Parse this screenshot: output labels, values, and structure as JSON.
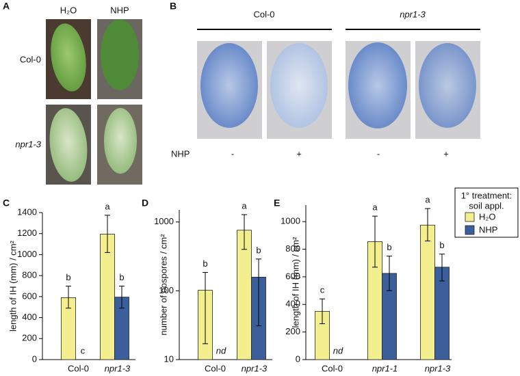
{
  "panel_a": {
    "label": "A",
    "columns": [
      "H₂O",
      "NHP"
    ],
    "rows": [
      "Col-0",
      "npr1-3"
    ]
  },
  "panel_b": {
    "label": "B",
    "groups": [
      "Col-0",
      "npr1-3"
    ],
    "treatment_label": "NHP",
    "treatments": [
      "-",
      "+",
      "-",
      "+"
    ]
  },
  "chart_data": [
    {
      "type": "bar",
      "panel": "C",
      "ylabel": "length of IH (mm) / cm²",
      "categories": [
        "Col-0",
        "npr1-3"
      ],
      "italic_categories": [
        false,
        true
      ],
      "ylim": [
        0,
        1400
      ],
      "yticks": [
        0,
        200,
        400,
        600,
        800,
        1000,
        1200,
        1400
      ],
      "log_scale": false,
      "series": [
        {
          "name": "H₂O",
          "color": "#f3ef8e",
          "values": [
            590,
            1195
          ],
          "errors": [
            [
              490,
              700
            ],
            [
              1020,
              1375
            ]
          ],
          "letters": [
            "b",
            "a"
          ]
        },
        {
          "name": "NHP",
          "color": "#3a5f9a",
          "values": [
            0,
            595
          ],
          "errors": [
            null,
            [
              490,
              700
            ]
          ],
          "letters": [
            "c",
            "b"
          ]
        }
      ]
    },
    {
      "type": "bar",
      "panel": "D",
      "ylabel": "number of oospores / cm²",
      "categories": [
        "Col-0",
        "npr1-3"
      ],
      "italic_categories": [
        false,
        true
      ],
      "ylim": [
        10,
        1500
      ],
      "yticks": [
        10,
        100,
        1000
      ],
      "log_scale": true,
      "series": [
        {
          "name": "H₂O",
          "color": "#f3ef8e",
          "values": [
            102,
            760
          ],
          "errors": [
            [
              17,
              185
            ],
            [
              400,
              1280
            ]
          ],
          "letters": [
            "b",
            "a"
          ]
        },
        {
          "name": "NHP",
          "color": "#3a5f9a",
          "values": [
            null,
            158
          ],
          "errors": [
            null,
            [
              31,
              290
            ]
          ],
          "letters": [
            "nd",
            "b"
          ]
        }
      ]
    },
    {
      "type": "bar",
      "panel": "E",
      "ylabel": "length of IH (mm) / cm²",
      "categories": [
        "Col-0",
        "npr1-1",
        "npr1-3"
      ],
      "italic_categories": [
        false,
        true,
        true
      ],
      "ylim": [
        0,
        1120
      ],
      "yticks": [
        0,
        200,
        400,
        600,
        800,
        1000
      ],
      "log_scale": false,
      "legend_title": [
        "1° treatment:",
        "soil appl."
      ],
      "series": [
        {
          "name": "H₂O",
          "color": "#f3ef8e",
          "values": [
            350,
            855,
            975
          ],
          "errors": [
            [
              260,
              440
            ],
            [
              670,
              1040
            ],
            [
              860,
              1095
            ]
          ],
          "letters": [
            "c",
            "a",
            "a"
          ]
        },
        {
          "name": "NHP",
          "color": "#3a5f9a",
          "values": [
            null,
            625,
            670
          ],
          "errors": [
            null,
            [
              500,
              750
            ],
            [
              570,
              765
            ]
          ],
          "letters": [
            "nd",
            "b",
            "b"
          ]
        }
      ]
    }
  ]
}
